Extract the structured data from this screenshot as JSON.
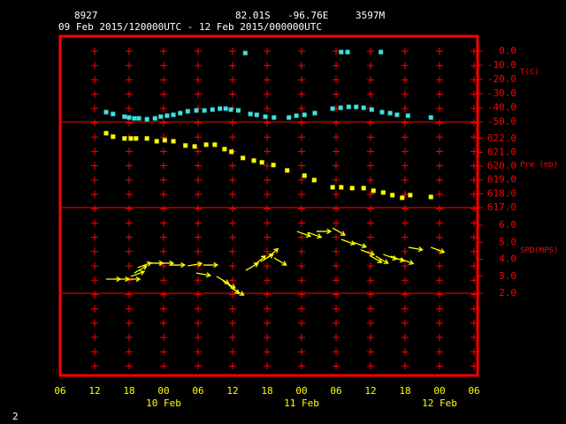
{
  "header": {
    "station": "8927",
    "latitude": "82.01S",
    "longitude": "-96.76E",
    "elevation": "3597M",
    "period": "09 Feb 2015/120000UTC - 12 Feb 2015/000000UTC"
  },
  "footer": "2",
  "chart_data": [
    {
      "type": "scatter",
      "axis_label": "T(C)",
      "color": "#40e0e0",
      "xlim": [
        0,
        72
      ],
      "ylim": [
        -50,
        10.6
      ],
      "yticks": [
        {
          "value": 0,
          "label": "0.0"
        },
        {
          "value": -10,
          "label": "-10.0"
        },
        {
          "value": -20,
          "label": "-20.0"
        },
        {
          "value": -30,
          "label": "-30.0"
        },
        {
          "value": -40,
          "label": "-40.0"
        },
        {
          "value": -50,
          "label": "-50.0"
        }
      ],
      "x": [
        8,
        9.2,
        11.2,
        12,
        12.9,
        13.7,
        15.1,
        16.5,
        17.5,
        18.6,
        19.7,
        20.9,
        22.2,
        23.7,
        25.1,
        26.5,
        27.8,
        28.8,
        29.7,
        31,
        32.2,
        33.1,
        34.2,
        35.7,
        37.2,
        39.8,
        41.1,
        42.5,
        44.3,
        47.4,
        48.8,
        48.9,
        50,
        50.2,
        51.5,
        52.8,
        54.2,
        55.8,
        56,
        57.4,
        58.6,
        60.5,
        64.5
      ],
      "values": [
        -43.1,
        -44.4,
        -46.3,
        -46.9,
        -47.5,
        -47.5,
        -48.1,
        -47.5,
        -46.3,
        -45.6,
        -45,
        -43.8,
        -42.5,
        -41.9,
        -41.9,
        -41.3,
        -40.6,
        -40.6,
        -41.3,
        -41.9,
        -1.3,
        -44.4,
        -45,
        -46.3,
        -46.9,
        -46.9,
        -45.6,
        -45,
        -43.8,
        -40.6,
        -40,
        -0.6,
        -0.6,
        -39.4,
        -39.4,
        -40,
        -41.3,
        -0.6,
        -43.1,
        -43.8,
        -45,
        -45.6,
        -46.9
      ]
    },
    {
      "type": "scatter",
      "axis_label": "Pre (mb)",
      "color": "#ffff00",
      "xlim": [
        0,
        72
      ],
      "ylim": [
        617,
        623.2
      ],
      "yticks": [
        {
          "value": 622,
          "label": "622.0"
        },
        {
          "value": 621,
          "label": "621.0"
        },
        {
          "value": 620,
          "label": "620.0"
        },
        {
          "value": 619,
          "label": "619.0"
        },
        {
          "value": 618,
          "label": "618.0"
        },
        {
          "value": 617,
          "label": "617.0"
        }
      ],
      "x": [
        8,
        9.2,
        11.2,
        12.3,
        13.2,
        15.1,
        16.8,
        18.2,
        19.7,
        21.8,
        23.4,
        25.4,
        26.9,
        28.6,
        29.8,
        31.8,
        33.7,
        35.1,
        37.1,
        39.5,
        42.5,
        44.2,
        47.4,
        48.9,
        50.8,
        52.8,
        54.5,
        56.2,
        57.8,
        59.5,
        60.9,
        64.5
      ],
      "values": [
        622.38,
        622.13,
        622,
        622,
        622,
        622,
        621.8,
        621.87,
        621.8,
        621.49,
        621.42,
        621.55,
        621.55,
        621.23,
        621.04,
        620.59,
        620.4,
        620.27,
        620.08,
        619.69,
        619.31,
        618.99,
        618.47,
        618.47,
        618.41,
        618.41,
        618.22,
        618.09,
        617.9,
        617.71,
        617.9,
        617.77
      ]
    },
    {
      "type": "vector",
      "axis_label": "SPD(MPS)",
      "color": "#ffff00",
      "xlim": [
        0,
        72
      ],
      "ylim": [
        2,
        7.04
      ],
      "yticks": [
        {
          "value": 6,
          "label": "6.0"
        },
        {
          "value": 5,
          "label": "5.0"
        },
        {
          "value": 4,
          "label": "4.0"
        },
        {
          "value": 3,
          "label": "3.0"
        },
        {
          "value": 2,
          "label": "2.0"
        }
      ],
      "xticks": [
        {
          "value": 0,
          "label": "06"
        },
        {
          "value": 6,
          "label": "12"
        },
        {
          "value": 12,
          "label": "18"
        },
        {
          "value": 18,
          "label": "00"
        },
        {
          "value": 24,
          "label": "06"
        },
        {
          "value": 30,
          "label": "12"
        },
        {
          "value": 36,
          "label": "18"
        },
        {
          "value": 42,
          "label": "00"
        },
        {
          "value": 48,
          "label": "06"
        },
        {
          "value": 54,
          "label": "12"
        },
        {
          "value": 60,
          "label": "18"
        },
        {
          "value": 66,
          "label": "00"
        },
        {
          "value": 72,
          "label": "06"
        }
      ],
      "date_ticks": [
        {
          "value": 18,
          "label": "10 Feb"
        },
        {
          "value": 42,
          "label": "11 Feb"
        },
        {
          "value": 66,
          "label": "12 Feb"
        }
      ],
      "x": [
        8,
        9.5,
        11.4,
        12.3,
        12.9,
        13.5,
        15.4,
        17.2,
        19.2,
        22.2,
        23.7,
        24.9,
        27.2,
        28.3,
        29.2,
        29.8,
        32.3,
        33.8,
        34.9,
        36,
        37.2,
        41.2,
        43.1,
        44.6,
        47.4,
        48.9,
        50.9,
        52.3,
        53.8,
        54.9,
        56.2,
        57.5,
        59.1,
        60.6,
        64.5
      ],
      "values": [
        2.83,
        2.83,
        2.83,
        2.99,
        3.19,
        3.51,
        3.77,
        3.77,
        3.66,
        3.61,
        3.19,
        3.66,
        2.99,
        2.73,
        2.52,
        2.31,
        3.35,
        3.66,
        3.87,
        4.08,
        4.08,
        5.64,
        5.58,
        5.64,
        5.84,
        5.17,
        5.01,
        4.55,
        4.23,
        4.18,
        4.29,
        4.18,
        4.03,
        4.7,
        4.7
      ],
      "directions": [
        0,
        0,
        0,
        -20,
        -30,
        -20,
        0,
        0,
        0,
        -10,
        10,
        0,
        30,
        30,
        40,
        30,
        -30,
        -40,
        -30,
        -40,
        30,
        20,
        20,
        0,
        30,
        20,
        20,
        20,
        30,
        30,
        20,
        20,
        20,
        10,
        20
      ]
    }
  ]
}
